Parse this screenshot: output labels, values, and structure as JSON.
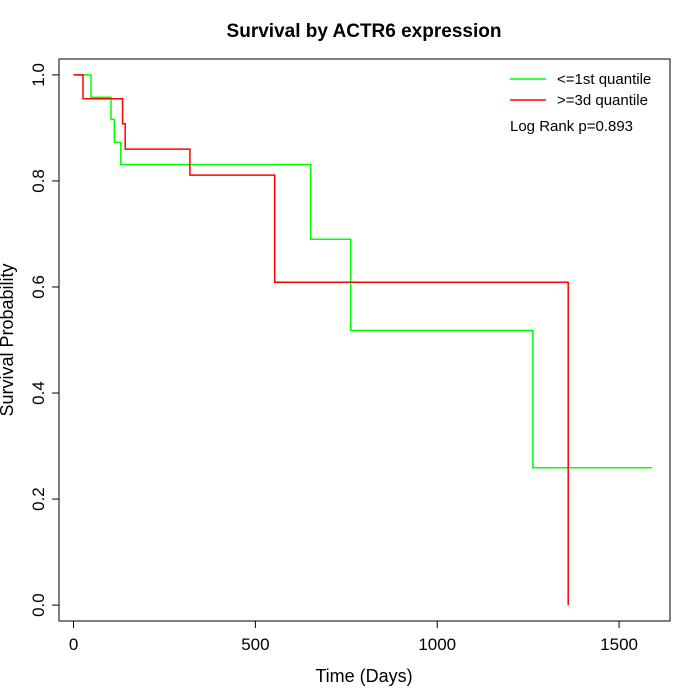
{
  "chart_data": {
    "type": "line",
    "title": "Survival by ACTR6 expression",
    "xlabel": "Time (Days)",
    "ylabel": "Survival Probability",
    "xlim": [
      -40,
      1640
    ],
    "ylim": [
      -0.03,
      1.03
    ],
    "x_ticks": [
      0,
      500,
      1000,
      1500
    ],
    "y_ticks": [
      0.0,
      0.2,
      0.4,
      0.6,
      0.8,
      1.0
    ],
    "x_tick_labels": [
      "0",
      "500",
      "1000",
      "1500"
    ],
    "y_tick_labels": [
      "0.0",
      "0.2",
      "0.4",
      "0.6",
      "0.8",
      "1.0"
    ],
    "grid": false,
    "legend_position": "top-right",
    "annotation": "Log Rank p=0.893",
    "series": [
      {
        "name": "<=1st quantile",
        "color": "#00ff00",
        "x": [
          0,
          48,
          48,
          103,
          103,
          112,
          112,
          130,
          130,
          652,
          652,
          762,
          762,
          1263,
          1263,
          1590
        ],
        "y": [
          1.0,
          1.0,
          0.958,
          0.958,
          0.916,
          0.916,
          0.873,
          0.873,
          0.831,
          0.831,
          0.69,
          0.69,
          0.518,
          0.518,
          0.259,
          0.259
        ]
      },
      {
        "name": ">=3d quantile",
        "color": "#ff0000",
        "x": [
          0,
          26,
          26,
          135,
          135,
          142,
          142,
          320,
          320,
          553,
          553,
          1360,
          1360
        ],
        "y": [
          1.0,
          1.0,
          0.955,
          0.955,
          0.908,
          0.908,
          0.86,
          0.86,
          0.811,
          0.811,
          0.609,
          0.609,
          0.0
        ]
      }
    ]
  }
}
